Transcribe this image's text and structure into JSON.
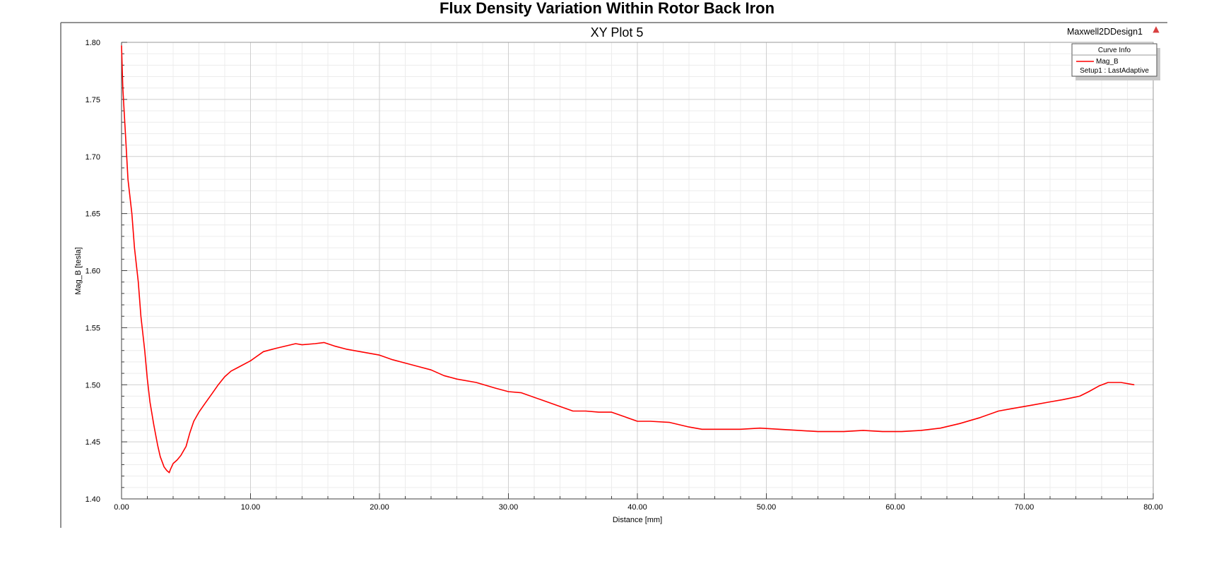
{
  "page_title": "Flux Density Variation Within Rotor Back Iron",
  "design_name": "Maxwell2DDesign1",
  "legend": {
    "header": "Curve Info",
    "entries": [
      {
        "name": "Mag_B",
        "subtitle": "Setup1 : LastAdaptive",
        "color": "#ff0000"
      }
    ]
  },
  "chart_data": {
    "type": "line",
    "title": "XY Plot 5",
    "xlabel": "Distance [mm]",
    "ylabel": "Mag_B [tesla]",
    "xlim": [
      0,
      80
    ],
    "ylim": [
      1.4,
      1.8
    ],
    "x_ticks": [
      0,
      10,
      20,
      30,
      40,
      50,
      60,
      70,
      80
    ],
    "x_tick_labels": [
      "0.00",
      "10.00",
      "20.00",
      "30.00",
      "40.00",
      "50.00",
      "60.00",
      "70.00",
      "80.00"
    ],
    "y_ticks": [
      1.4,
      1.45,
      1.5,
      1.55,
      1.6,
      1.65,
      1.7,
      1.75,
      1.8
    ],
    "y_tick_labels": [
      "1.40",
      "1.45",
      "1.50",
      "1.55",
      "1.60",
      "1.65",
      "1.70",
      "1.75",
      "1.80"
    ],
    "grid": true,
    "legend_position": "top-right",
    "series": [
      {
        "name": "Mag_B",
        "color": "#ff0000",
        "x": [
          0.0,
          0.1,
          0.3,
          0.5,
          0.8,
          1.0,
          1.3,
          1.5,
          1.8,
          2.0,
          2.2,
          2.5,
          2.8,
          3.0,
          3.3,
          3.5,
          3.7,
          3.8,
          4.0,
          4.3,
          4.6,
          5.0,
          5.3,
          5.6,
          6.0,
          6.5,
          7.0,
          7.5,
          8.0,
          8.5,
          9.0,
          10.0,
          11.0,
          12.0,
          13.5,
          14.0,
          15.0,
          15.7,
          16.5,
          17.5,
          18.5,
          20.0,
          21.0,
          22.0,
          23.0,
          24.0,
          25.0,
          26.0,
          27.5,
          29.0,
          30.0,
          31.0,
          32.5,
          34.0,
          35.0,
          36.0,
          37.0,
          38.0,
          39.0,
          40.0,
          41.0,
          42.5,
          44.0,
          45.0,
          46.5,
          48.0,
          49.5,
          51.0,
          52.5,
          54.0,
          56.0,
          57.5,
          59.0,
          60.5,
          62.0,
          63.5,
          65.0,
          66.5,
          68.0,
          69.0,
          70.5,
          72.0,
          73.0,
          74.3,
          75.0,
          75.8,
          76.5,
          77.5,
          78.5
        ],
        "y": [
          1.797,
          1.76,
          1.72,
          1.68,
          1.65,
          1.62,
          1.59,
          1.56,
          1.53,
          1.505,
          1.485,
          1.465,
          1.447,
          1.437,
          1.428,
          1.425,
          1.423,
          1.426,
          1.431,
          1.434,
          1.438,
          1.446,
          1.458,
          1.468,
          1.476,
          1.484,
          1.492,
          1.5,
          1.507,
          1.512,
          1.515,
          1.521,
          1.529,
          1.532,
          1.536,
          1.535,
          1.536,
          1.537,
          1.534,
          1.531,
          1.529,
          1.526,
          1.522,
          1.519,
          1.516,
          1.513,
          1.508,
          1.505,
          1.502,
          1.497,
          1.494,
          1.493,
          1.487,
          1.481,
          1.477,
          1.477,
          1.476,
          1.476,
          1.472,
          1.468,
          1.468,
          1.467,
          1.463,
          1.461,
          1.461,
          1.461,
          1.462,
          1.461,
          1.46,
          1.459,
          1.459,
          1.46,
          1.459,
          1.459,
          1.46,
          1.462,
          1.466,
          1.471,
          1.477,
          1.479,
          1.482,
          1.485,
          1.487,
          1.49,
          1.494,
          1.499,
          1.502,
          1.502,
          1.5
        ]
      }
    ]
  }
}
